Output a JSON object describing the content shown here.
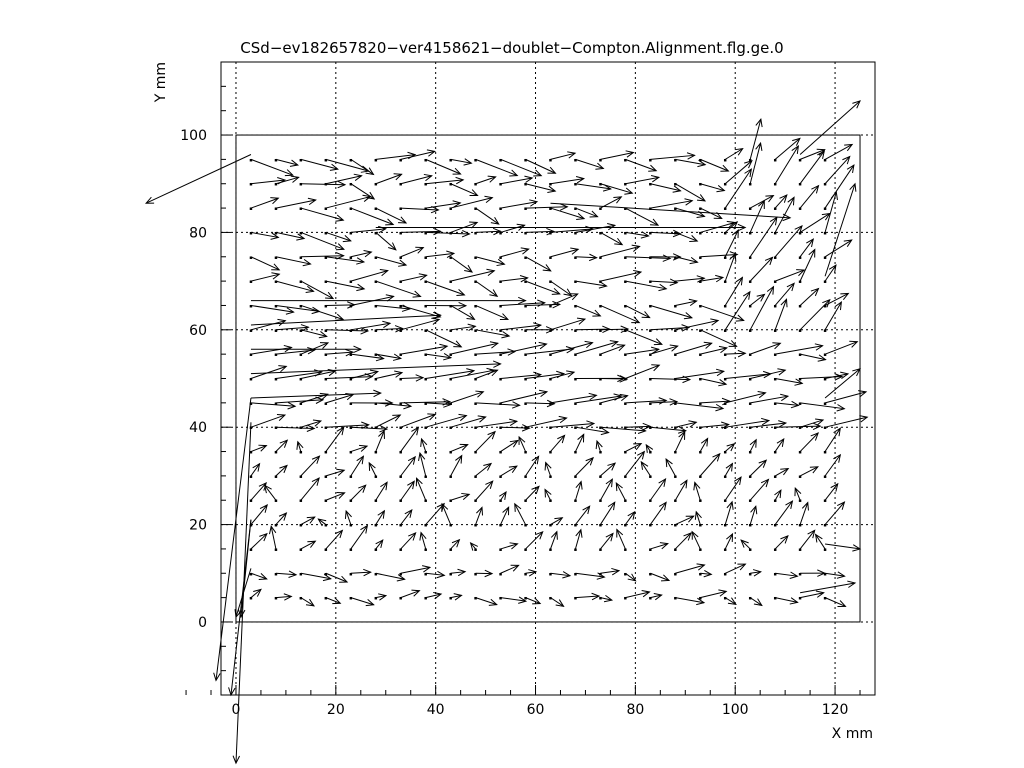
{
  "chart_data": {
    "type": "vector-field",
    "title": "CSd−ev182657820−ver4158621−doublet−Compton.Alignment.flg.ge.0",
    "xlabel": "X mm",
    "ylabel": "Y mm",
    "xlim": [
      -3,
      128
    ],
    "ylim": [
      -15,
      115
    ],
    "x_ticks": [
      "0",
      "20",
      "40",
      "60",
      "80",
      "100",
      "120"
    ],
    "y_ticks": [
      "0",
      "20",
      "40",
      "60",
      "80",
      "100"
    ],
    "grid": true,
    "detector_outline": {
      "x": [
        0,
        125
      ],
      "y": [
        0,
        100
      ]
    },
    "cell_grid": {
      "x_start": 3,
      "x_step": 5,
      "columns": 24,
      "y_start": 5,
      "y_step": 5,
      "rows": 19,
      "labels_visible": true
    },
    "labeled_arrows": [
      {
        "x": 3,
        "y": 96,
        "dx": -21,
        "dy": -10
      },
      {
        "x": 3,
        "y": 46,
        "dx": -7,
        "dy": -58
      },
      {
        "x": 3,
        "y": 41,
        "dx": -3,
        "dy": -70
      },
      {
        "x": 3,
        "y": 21,
        "dx": -4,
        "dy": -36
      },
      {
        "x": 3,
        "y": 21,
        "dx": -2,
        "dy": -20
      },
      {
        "x": 3,
        "y": 11,
        "dx": -3,
        "dy": -10
      },
      {
        "x": 3,
        "y": 56,
        "dx": 22,
        "dy": 0
      },
      {
        "x": 3,
        "y": 61,
        "dx": 38,
        "dy": 2
      },
      {
        "x": 3,
        "y": 66,
        "dx": 55,
        "dy": 0
      },
      {
        "x": 3,
        "y": 51,
        "dx": 50,
        "dy": 2
      },
      {
        "x": 3,
        "y": 46,
        "dx": 26,
        "dy": 1
      },
      {
        "x": 28,
        "y": 81,
        "dx": 74,
        "dy": 0
      },
      {
        "x": 63,
        "y": 86,
        "dx": 48,
        "dy": -3
      },
      {
        "x": 118,
        "y": 71,
        "dx": 6,
        "dy": 19
      },
      {
        "x": 118,
        "y": 46,
        "dx": 7,
        "dy": 6
      },
      {
        "x": 118,
        "y": 16,
        "dx": 7,
        "dy": -1
      },
      {
        "x": 113,
        "y": 6,
        "dx": 11,
        "dy": 2
      },
      {
        "x": 113,
        "y": 96,
        "dx": 12,
        "dy": 11
      }
    ]
  }
}
